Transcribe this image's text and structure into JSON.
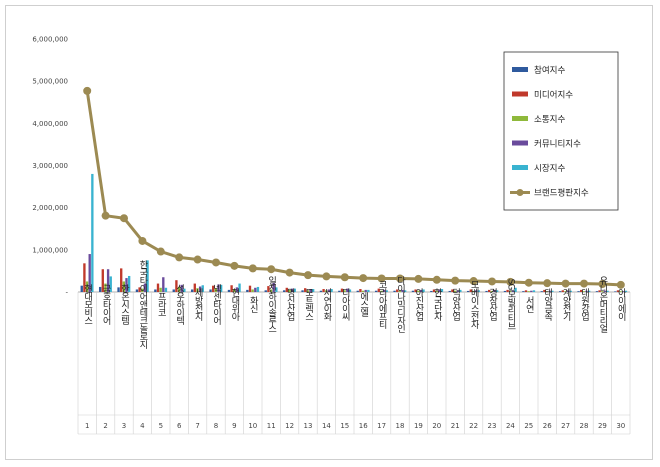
{
  "chart_data": {
    "type": "bar",
    "title": "",
    "xlabel": "",
    "ylabel": "",
    "ylim": [
      0,
      6000000
    ],
    "yticks": [
      0,
      1000000,
      2000000,
      3000000,
      4000000,
      5000000,
      6000000
    ],
    "ytick_labels": [
      "-",
      "1,000,000",
      "2,000,000",
      "3,000,000",
      "4,000,000",
      "5,000,000",
      "6,000,000"
    ],
    "grid": false,
    "legend_position": "top-right",
    "categories": [
      "현대모비스",
      "금호타이어",
      "한온시스템",
      "한국타이어앤테크놀로지",
      "프라코",
      "성우하이텍",
      "세방전지",
      "넥센타이어",
      "현대위아",
      "화신",
      "일진하이솔루스",
      "명신산업",
      "모트렉스",
      "서연이화",
      "디아이씨",
      "에스엘",
      "코리아에프티",
      "다이나믹디자인",
      "아진산업",
      "한국단자",
      "덕양산업",
      "모베이스전자",
      "경창산업",
      "SG모빌리티브",
      "서연",
      "태양금속",
      "계양전기",
      "대원강업",
      "유니온머티리얼",
      "아이에이"
    ],
    "indices": [
      "1",
      "2",
      "3",
      "4",
      "5",
      "6",
      "7",
      "8",
      "9",
      "10",
      "11",
      "12",
      "13",
      "14",
      "15",
      "16",
      "17",
      "18",
      "19",
      "20",
      "21",
      "22",
      "23",
      "24",
      "25",
      "26",
      "27",
      "28",
      "29",
      "30"
    ],
    "series": [
      {
        "name": "참여지수",
        "kind": "bar",
        "color": "#2f5a9e",
        "values": [
          150000,
          120000,
          110000,
          60000,
          60000,
          60000,
          60000,
          60000,
          50000,
          50000,
          40000,
          40000,
          40000,
          30000,
          30000,
          30000,
          30000,
          30000,
          30000,
          25000,
          25000,
          25000,
          25000,
          25000,
          20000,
          20000,
          20000,
          20000,
          20000,
          15000
        ]
      },
      {
        "name": "미디어지수",
        "kind": "bar",
        "color": "#c0392b",
        "values": [
          680000,
          540000,
          560000,
          110000,
          200000,
          280000,
          200000,
          150000,
          160000,
          150000,
          140000,
          100000,
          90000,
          70000,
          80000,
          70000,
          80000,
          60000,
          60000,
          60000,
          60000,
          60000,
          50000,
          50000,
          40000,
          50000,
          40000,
          50000,
          40000,
          40000
        ]
      },
      {
        "name": "소통지수",
        "kind": "bar",
        "color": "#8fb93b",
        "values": [
          250000,
          200000,
          250000,
          80000,
          100000,
          120000,
          90000,
          80000,
          70000,
          60000,
          60000,
          50000,
          40000,
          40000,
          40000,
          30000,
          30000,
          30000,
          30000,
          30000,
          30000,
          25000,
          25000,
          25000,
          20000,
          20000,
          20000,
          20000,
          20000,
          20000
        ]
      },
      {
        "name": "커뮤니티지수",
        "kind": "bar",
        "color": "#6a4b9c",
        "values": [
          900000,
          540000,
          330000,
          200000,
          350000,
          170000,
          130000,
          180000,
          110000,
          100000,
          220000,
          80000,
          60000,
          60000,
          80000,
          50000,
          50000,
          50000,
          50000,
          60000,
          40000,
          40000,
          40000,
          40000,
          30000,
          30000,
          30000,
          30000,
          30000,
          20000
        ]
      },
      {
        "name": "시장지수",
        "kind": "bar",
        "color": "#39b3d0",
        "values": [
          2800000,
          370000,
          380000,
          750000,
          100000,
          80000,
          160000,
          170000,
          200000,
          120000,
          110000,
          80000,
          70000,
          70000,
          60000,
          50000,
          40000,
          40000,
          60000,
          70000,
          50000,
          40000,
          40000,
          100000,
          40000,
          30000,
          30000,
          30000,
          30000,
          30000
        ]
      },
      {
        "name": "브랜드평판지수",
        "kind": "line",
        "color": "#9c8a52",
        "values": [
          4770000,
          1810000,
          1750000,
          1210000,
          960000,
          820000,
          770000,
          700000,
          620000,
          560000,
          540000,
          460000,
          400000,
          370000,
          350000,
          330000,
          320000,
          320000,
          310000,
          290000,
          270000,
          260000,
          250000,
          240000,
          220000,
          210000,
          200000,
          200000,
          190000,
          170000
        ]
      }
    ]
  }
}
